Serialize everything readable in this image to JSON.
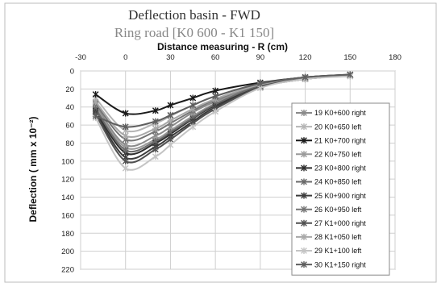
{
  "chart_data": {
    "type": "line",
    "title": "Deflection basin  - FWD",
    "subtitle": "Ring road [K0 600 - K1 150]",
    "xlabel": "Distance measuring - R (cm)",
    "ylabel": "Deflection ( mm x 10⁻²)",
    "xlim": [
      -30,
      180
    ],
    "ylim": [
      0,
      220
    ],
    "y_inverted": true,
    "x_axis_position": "top",
    "xticks": [
      -30,
      0,
      30,
      60,
      90,
      120,
      150,
      180
    ],
    "yticks": [
      0,
      20,
      40,
      60,
      80,
      100,
      120,
      140,
      160,
      180,
      200,
      220
    ],
    "grid": true,
    "legend_position": "right",
    "x": [
      -20,
      0,
      20,
      30,
      45,
      60,
      90,
      120,
      150
    ],
    "series": [
      {
        "name": "19 K0+600 right",
        "color": "#8a8a8a",
        "values": [
          38,
          82,
          72,
          62,
          46,
          34,
          16,
          8,
          5
        ]
      },
      {
        "name": "20 K0+650 left",
        "color": "#b5b5b5",
        "values": [
          30,
          66,
          58,
          50,
          38,
          28,
          14,
          7,
          4
        ]
      },
      {
        "name": "21 K0+700 right",
        "color": "#1a1a1a",
        "values": [
          26,
          47,
          44,
          38,
          30,
          22,
          13,
          7,
          4
        ]
      },
      {
        "name": "22 K0+750 left",
        "color": "#9a9a9a",
        "values": [
          40,
          85,
          76,
          66,
          50,
          36,
          16,
          8,
          5
        ]
      },
      {
        "name": "23 K0+800 right",
        "color": "#2e2e2e",
        "values": [
          44,
          91,
          80,
          70,
          53,
          38,
          17,
          8,
          5
        ]
      },
      {
        "name": "24 K0+850 left",
        "color": "#6a6a6a",
        "values": [
          42,
          88,
          78,
          68,
          52,
          37,
          16,
          8,
          5
        ]
      },
      {
        "name": "25 K0+900 right",
        "color": "#3c3c3c",
        "values": [
          46,
          96,
          84,
          73,
          56,
          40,
          18,
          9,
          5
        ]
      },
      {
        "name": "26 K0+950 left",
        "color": "#757575",
        "values": [
          36,
          76,
          67,
          58,
          44,
          32,
          15,
          8,
          5
        ]
      },
      {
        "name": "27 K1+000 right",
        "color": "#505050",
        "values": [
          48,
          100,
          87,
          76,
          58,
          42,
          18,
          9,
          5
        ]
      },
      {
        "name": "28 K1+050 left",
        "color": "#a8a8a8",
        "values": [
          34,
          72,
          64,
          55,
          42,
          31,
          15,
          7,
          5
        ]
      },
      {
        "name": "29 K1+100 left",
        "color": "#c4c4c4",
        "values": [
          52,
          108,
          95,
          82,
          62,
          45,
          19,
          9,
          6
        ]
      },
      {
        "name": "30 K1+150 right",
        "color": "#5e5e5e",
        "values": [
          50,
          62,
          56,
          49,
          38,
          28,
          14,
          7,
          4
        ]
      }
    ]
  }
}
